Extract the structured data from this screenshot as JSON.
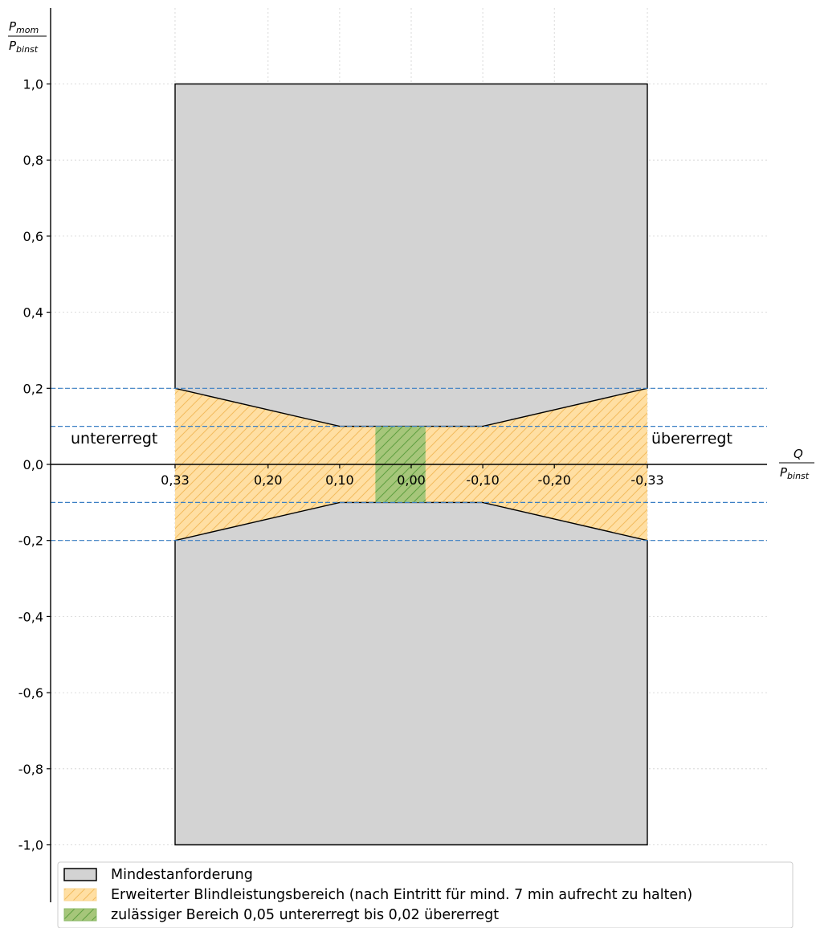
{
  "chart_data": {
    "type": "area",
    "y_axis_label": {
      "main": "P",
      "num_sub": "mom",
      "den_sub": "binst"
    },
    "x_axis_label": {
      "num": "Q",
      "den_main": "P",
      "den_sub": "binst"
    },
    "x_range": [
      0.43,
      -0.43
    ],
    "y_range": [
      -1.15,
      1.15
    ],
    "x_direction": "decreasing to the right",
    "grid": true,
    "y_ticks": [
      {
        "value": 1.0,
        "label": "1,0"
      },
      {
        "value": 0.8,
        "label": "0,8"
      },
      {
        "value": 0.6,
        "label": "0,6"
      },
      {
        "value": 0.4,
        "label": "0,4"
      },
      {
        "value": 0.2,
        "label": "0,2"
      },
      {
        "value": 0.0,
        "label": "0,0"
      },
      {
        "value": -0.2,
        "label": "-0,2"
      },
      {
        "value": -0.4,
        "label": "-0,4"
      },
      {
        "value": -0.6,
        "label": "-0,6"
      },
      {
        "value": -0.8,
        "label": "-0,8"
      },
      {
        "value": -1.0,
        "label": "-1,0"
      }
    ],
    "x_ticks": [
      {
        "value": 0.33,
        "label": "0,33"
      },
      {
        "value": 0.2,
        "label": "0,20"
      },
      {
        "value": 0.1,
        "label": "0,10"
      },
      {
        "value": 0.0,
        "label": "0,00"
      },
      {
        "value": -0.1,
        "label": "-0,10"
      },
      {
        "value": -0.2,
        "label": "-0,20"
      },
      {
        "value": -0.33,
        "label": "-0,33"
      }
    ],
    "x_grid_values": [
      0.33,
      0.2,
      0.1,
      0.0,
      -0.1,
      -0.2,
      -0.33
    ],
    "hlines": [
      0.2,
      0.1,
      -0.1,
      -0.2
    ],
    "region_labels": [
      {
        "text": "untererregt",
        "side": "left"
      },
      {
        "text": "übererregt",
        "side": "right"
      }
    ],
    "series": [
      {
        "name": "Mindestanforderung",
        "color": "#d3d3d3",
        "polygons": [
          [
            [
              0.33,
              1.0
            ],
            [
              -0.33,
              1.0
            ],
            [
              -0.33,
              0.2
            ],
            [
              -0.1,
              0.1
            ],
            [
              0.1,
              0.1
            ],
            [
              0.33,
              0.2
            ]
          ],
          [
            [
              0.33,
              -1.0
            ],
            [
              -0.33,
              -1.0
            ],
            [
              -0.33,
              -0.2
            ],
            [
              -0.1,
              -0.1
            ],
            [
              0.1,
              -0.1
            ],
            [
              0.33,
              -0.2
            ]
          ]
        ]
      },
      {
        "name": "Erweiterter Blindleistungsbereich (nach Eintritt für mind. 7 min aufrecht zu halten)",
        "color": "#ffdfa3",
        "hatch_color": "#f5c36b",
        "polygons": [
          [
            [
              0.33,
              0.2
            ],
            [
              0.1,
              0.1
            ],
            [
              -0.1,
              0.1
            ],
            [
              -0.33,
              0.2
            ],
            [
              -0.33,
              -0.2
            ],
            [
              -0.1,
              -0.1
            ],
            [
              0.1,
              -0.1
            ],
            [
              0.33,
              -0.2
            ]
          ]
        ]
      },
      {
        "name": "zulässiger Bereich 0,05 untererregt bis 0,02 übererregt",
        "color": "#a6c67a",
        "hatch_color": "#6fae4f",
        "polygons": [
          [
            [
              0.05,
              0.1
            ],
            [
              -0.02,
              0.1
            ],
            [
              -0.02,
              -0.1
            ],
            [
              0.05,
              -0.1
            ]
          ]
        ]
      }
    ],
    "legend": {
      "position": "bottom-left",
      "items": [
        "Mindestanforderung",
        "Erweiterter Blindleistungsbereich (nach Eintritt für mind. 7 min aufrecht zu halten)",
        "zulässiger Bereich 0,05 untererregt bis 0,02 übererregt"
      ]
    }
  }
}
